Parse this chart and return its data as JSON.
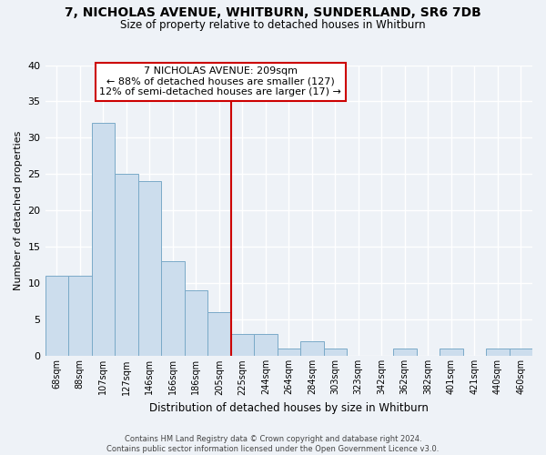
{
  "title": "7, NICHOLAS AVENUE, WHITBURN, SUNDERLAND, SR6 7DB",
  "subtitle": "Size of property relative to detached houses in Whitburn",
  "xlabel": "Distribution of detached houses by size in Whitburn",
  "ylabel": "Number of detached properties",
  "bar_labels": [
    "68sqm",
    "88sqm",
    "107sqm",
    "127sqm",
    "146sqm",
    "166sqm",
    "186sqm",
    "205sqm",
    "225sqm",
    "244sqm",
    "264sqm",
    "284sqm",
    "303sqm",
    "323sqm",
    "342sqm",
    "362sqm",
    "382sqm",
    "401sqm",
    "421sqm",
    "440sqm",
    "460sqm"
  ],
  "bar_values": [
    11,
    11,
    32,
    25,
    24,
    13,
    9,
    6,
    3,
    3,
    1,
    2,
    1,
    0,
    0,
    1,
    0,
    1,
    0,
    1,
    1
  ],
  "bar_color": "#ccdded",
  "bar_edge_color": "#7aaac8",
  "ylim": [
    0,
    40
  ],
  "yticks": [
    0,
    5,
    10,
    15,
    20,
    25,
    30,
    35,
    40
  ],
  "property_line_label": "7 NICHOLAS AVENUE: 209sqm",
  "annotation_line1": "← 88% of detached houses are smaller (127)",
  "annotation_line2": "12% of semi-detached houses are larger (17) →",
  "footer_line1": "Contains HM Land Registry data © Crown copyright and database right 2024.",
  "footer_line2": "Contains public sector information licensed under the Open Government Licence v3.0.",
  "background_color": "#eef2f7",
  "grid_color": "#ffffff",
  "vline_color": "#cc0000",
  "box_edge_color": "#cc0000",
  "box_fill_color": "#ffffff",
  "vline_x": 7.5
}
